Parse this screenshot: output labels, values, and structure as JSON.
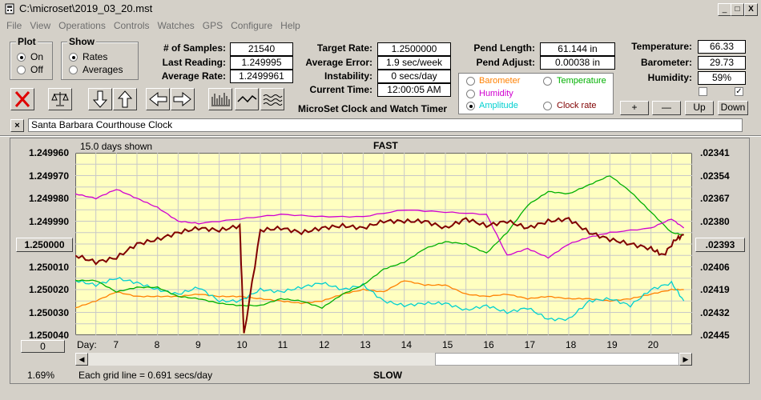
{
  "window": {
    "title": "C:\\microset\\2019_03_20.mst",
    "min": "_",
    "max": "□",
    "close": "X"
  },
  "menu": [
    "File",
    "View",
    "Operations",
    "Controls",
    "Watches",
    "GPS",
    "Configure",
    "Help"
  ],
  "plot": {
    "title": "Plot",
    "on": "On",
    "off": "Off"
  },
  "show": {
    "title": "Show",
    "rates": "Rates",
    "averages": "Averages"
  },
  "stats": {
    "samples_label": "# of Samples:",
    "samples": "21540",
    "last_label": "Last Reading:",
    "last": "1.249995",
    "avg_rate_label": "Average Rate:",
    "avg_rate": "1.2499961",
    "target_label": "Target Rate:",
    "target": "1.2500000",
    "avg_err_label": "Average Error:",
    "avg_err": "1.9 sec/week",
    "instab_label": "Instability:",
    "instab": "0 secs/day",
    "time_label": "Current Time:",
    "time": "12:00:05 AM",
    "pend_len_label": "Pend Length:",
    "pend_len": "61.144 in",
    "pend_adj_label": "Pend Adjust:",
    "pend_adj": "0.00038 in",
    "temp_label": "Temperature:",
    "temp": "66.33",
    "baro_label": "Barometer:",
    "baro": "29.73",
    "hum_label": "Humidity:",
    "hum": "59%"
  },
  "app_caption": "MicroSet Clock and Watch Timer",
  "series_select": {
    "barometer": "Barometer",
    "temperature": "Temperature",
    "humidity": "Humidity",
    "amplitude": "Amplitude",
    "clock_rate": "Clock rate"
  },
  "colors": {
    "barometer": "#ff8000",
    "temperature": "#00b000",
    "humidity": "#d000d0",
    "amplitude": "#00d0d0",
    "clock_rate": "#800000",
    "plot_bg": "#ffffc0"
  },
  "buttons": {
    "plus": "+",
    "minus": "—",
    "up": "Up",
    "down": "Down"
  },
  "clock_name": "Santa Barbara Courthouse Clock",
  "chart_data": {
    "type": "line",
    "top_label": "FAST",
    "bottom_label": "SLOW",
    "days_shown": "15.0 days shown",
    "left_ticks": [
      "1.249960",
      "1.249970",
      "1.249980",
      "1.249990",
      "1.250000",
      "1.250010",
      "1.250020",
      "1.250030",
      "1.250040"
    ],
    "right_ticks": [
      ".02341",
      ".02354",
      ".02367",
      ".02380",
      ".02393",
      ".02406",
      ".02419",
      ".02432",
      ".02445"
    ],
    "x_label": "Day:",
    "x_ticks": [
      "7",
      "8",
      "9",
      "10",
      "11",
      "12",
      "13",
      "14",
      "15",
      "16",
      "17",
      "18",
      "19",
      "20"
    ],
    "x_range": [
      6.0,
      21.0
    ],
    "ylim": [
      1.24996,
      1.25004
    ],
    "footer_left": "0",
    "footer_pct": "1.69%",
    "grid_note": "Each grid line = 0.691 secs/day",
    "series": [
      {
        "key": "clock_rate",
        "x": [
          6,
          6.5,
          7,
          7.5,
          8,
          8.5,
          9,
          9.5,
          10,
          10.1,
          10.5,
          11,
          11.5,
          12,
          12.5,
          13,
          13.5,
          14,
          14.5,
          15,
          15.5,
          16,
          16.5,
          17,
          17.5,
          18,
          18.5,
          19,
          19.5,
          20,
          20.3,
          20.6,
          20.8
        ],
        "values": [
          1.250005,
          1.250008,
          1.250006,
          1.25,
          1.249998,
          1.249995,
          1.249993,
          1.249994,
          1.249992,
          1.25004,
          1.249994,
          1.249993,
          1.249995,
          1.249993,
          1.249992,
          1.249993,
          1.24999,
          1.24999,
          1.24999,
          1.249993,
          1.249989,
          1.249992,
          1.24999,
          1.249993,
          1.24999,
          1.249989,
          1.249995,
          1.249998,
          1.25,
          1.250002,
          1.250005,
          1.249998,
          1.249996
        ]
      },
      {
        "key": "humidity",
        "x": [
          6,
          6.5,
          7,
          7.5,
          8,
          8.5,
          9,
          10,
          11,
          12,
          13,
          14,
          15,
          16,
          16.5,
          17,
          17.5,
          18,
          18.5,
          19,
          20,
          20.5,
          20.8
        ],
        "values": [
          1.249978,
          1.24998,
          1.249976,
          1.24998,
          1.249984,
          1.24999,
          1.249991,
          1.249989,
          1.249987,
          1.249988,
          1.249988,
          1.249985,
          1.249986,
          1.249987,
          1.250005,
          1.250002,
          1.250006,
          1.25,
          1.249997,
          1.249995,
          1.249993,
          1.249989,
          1.249993
        ]
      },
      {
        "key": "temperature",
        "x": [
          6,
          6.5,
          7,
          7.5,
          8,
          8.5,
          9,
          9.5,
          10,
          10.5,
          11,
          11.5,
          12,
          12.5,
          13,
          13.5,
          14,
          14.5,
          15,
          15.5,
          16,
          16.5,
          17,
          17.5,
          18,
          18.5,
          19,
          19.5,
          20,
          20.5,
          20.8
        ],
        "values": [
          1.250016,
          1.250016,
          1.250021,
          1.250019,
          1.250019,
          1.250023,
          1.250024,
          1.250026,
          1.250027,
          1.250027,
          1.250024,
          1.250025,
          1.250028,
          1.250022,
          1.250018,
          1.250011,
          1.250008,
          1.250002,
          1.249999,
          1.25,
          1.250004,
          1.249995,
          1.249983,
          1.249977,
          1.249978,
          1.249974,
          1.24997,
          1.249977,
          1.249986,
          1.249995,
          1.249996
        ]
      },
      {
        "key": "amplitude",
        "x": [
          6,
          6.5,
          7,
          7.5,
          8,
          8.5,
          9,
          9.5,
          10,
          10.5,
          11,
          11.5,
          12,
          12.5,
          13,
          13.5,
          14,
          14.5,
          15,
          15.5,
          16,
          16.5,
          17,
          17.5,
          18,
          18.5,
          19,
          19.5,
          20,
          20.5,
          20.8
        ],
        "values": [
          1.250016,
          1.250018,
          1.250015,
          1.250017,
          1.25002,
          1.250022,
          1.250019,
          1.250025,
          1.250025,
          1.25002,
          1.250021,
          1.250019,
          1.250017,
          1.25002,
          1.250018,
          1.250025,
          1.250027,
          1.250026,
          1.250026,
          1.250029,
          1.250027,
          1.25003,
          1.250028,
          1.250033,
          1.250033,
          1.250025,
          1.250024,
          1.250027,
          1.25002,
          1.250017,
          1.250025
        ]
      },
      {
        "key": "barometer",
        "x": [
          6,
          6.5,
          7,
          7.5,
          8,
          8.5,
          9,
          9.5,
          10,
          10.5,
          11,
          11.5,
          12,
          12.5,
          13,
          13.5,
          14,
          14.5,
          15,
          15.5,
          16,
          16.5,
          17,
          17.5,
          18,
          18.5,
          19,
          19.5,
          20,
          20.5,
          20.8
        ],
        "values": [
          1.250028,
          1.250025,
          1.250021,
          1.250023,
          1.250023,
          1.250023,
          1.250022,
          1.250023,
          1.250023,
          1.250024,
          1.250025,
          1.250026,
          1.250025,
          1.250022,
          1.25002,
          1.250021,
          1.250016,
          1.250018,
          1.250018,
          1.250022,
          1.250023,
          1.250022,
          1.250024,
          1.250023,
          1.250024,
          1.250024,
          1.250025,
          1.250024,
          1.250022,
          1.25002,
          1.25002
        ]
      }
    ]
  }
}
